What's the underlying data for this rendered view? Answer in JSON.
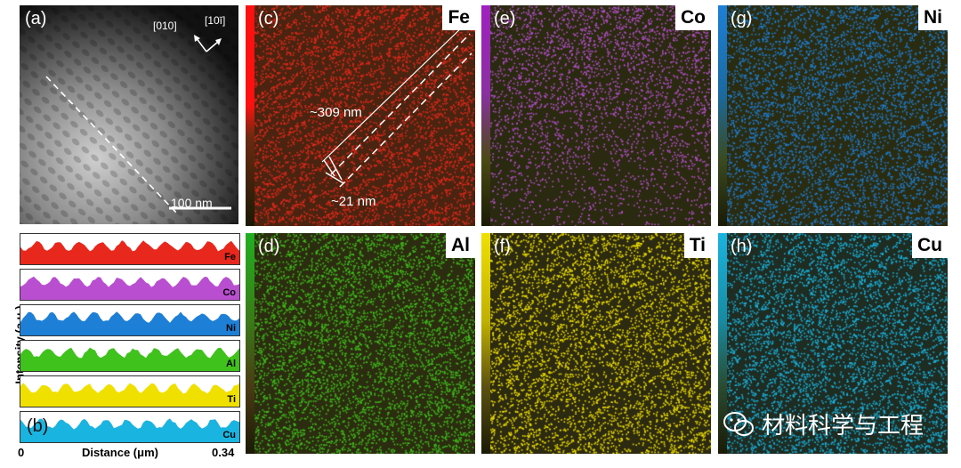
{
  "panels": {
    "a": {
      "label": "(a)",
      "dir_x": "[010]",
      "dir_y": "[10ī]",
      "scale_bar": "100 nm"
    },
    "b": {
      "label": "(b)",
      "x_start": "0",
      "x_end": "0.34",
      "xlabel": "Distance (μm)",
      "ylabel": "Intensity (a.u.)",
      "scans": [
        "Fe",
        "Co",
        "Ni",
        "Al",
        "Ti",
        "Cu"
      ]
    },
    "c": {
      "label": "(c)",
      "element": "Fe",
      "width_label": "~309 nm",
      "thick_label": "~21 nm"
    },
    "d": {
      "label": "(d)",
      "element": "Al"
    },
    "e": {
      "label": "(e)",
      "element": "Co"
    },
    "f": {
      "label": "(f)",
      "element": "Ti"
    },
    "g": {
      "label": "(g)",
      "element": "Ni"
    },
    "h": {
      "label": "(h)",
      "element": "Cu"
    }
  },
  "colors": {
    "Fe": "#e8281c",
    "Co": "#b94fd0",
    "Ni": "#1e7fd6",
    "Al": "#3fc21c",
    "Ti": "#f0e000",
    "Cu": "#1ab4e0"
  },
  "watermark": {
    "icon": "wechat-icon",
    "text": "材料科学与工程"
  }
}
